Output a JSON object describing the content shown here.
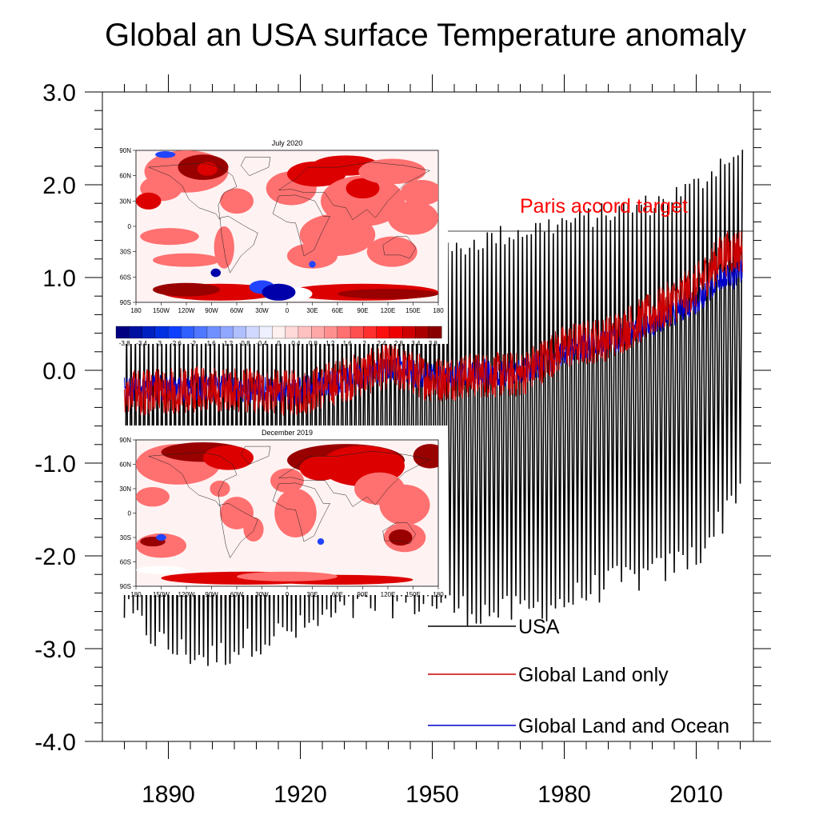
{
  "chart_data": {
    "type": "line",
    "title": "Global an USA surface Temperature anomaly",
    "xlabel": "",
    "ylabel": "",
    "xlim": [
      1875,
      2023
    ],
    "ylim": [
      -4.0,
      3.0
    ],
    "x_ticks": [
      1890,
      1920,
      1950,
      1980,
      2010
    ],
    "x_tick_labels": [
      "1890",
      "1920",
      "1950",
      "1980",
      "2010"
    ],
    "y_ticks": [
      3.0,
      2.0,
      1.0,
      0.0,
      -1.0,
      -2.0,
      -3.0,
      -4.0
    ],
    "y_tick_labels": [
      "3.0",
      "2.0",
      "1.0",
      "0.0",
      "-1.0",
      "-2.0",
      "-3.0",
      "-4.0"
    ],
    "legend_placement": "bottom-right",
    "series": [
      {
        "name": "USA",
        "color": "#000000",
        "period_years": 1,
        "envelope_x": [
          1880,
          1890,
          1900,
          1910,
          1920,
          1930,
          1940,
          1950,
          1960,
          1970,
          1980,
          1990,
          2000,
          2010,
          2016,
          2020
        ],
        "envelope_max": [
          0.4,
          0.5,
          0.5,
          0.5,
          0.6,
          0.7,
          0.8,
          1.2,
          1.4,
          1.5,
          1.6,
          1.7,
          1.8,
          2.0,
          2.3,
          2.3
        ],
        "envelope_min": [
          -2.6,
          -3.0,
          -3.1,
          -2.9,
          -2.8,
          -2.6,
          -2.5,
          -2.5,
          -2.6,
          -2.6,
          -2.5,
          -2.3,
          -2.2,
          -2.0,
          -1.6,
          -1.2
        ]
      },
      {
        "name": "Global Land only",
        "color": "#cc0000",
        "trend_x": [
          1880,
          1900,
          1920,
          1940,
          1950,
          1960,
          1970,
          1980,
          1990,
          2000,
          2010,
          2016,
          2020
        ],
        "trend_y": [
          -0.25,
          -0.2,
          -0.25,
          0.05,
          -0.1,
          -0.05,
          -0.05,
          0.25,
          0.35,
          0.6,
          0.9,
          1.25,
          1.3
        ],
        "noise": 0.25
      },
      {
        "name": "Global Land and Ocean",
        "color": "#0000cc",
        "trend_x": [
          1880,
          1900,
          1920,
          1940,
          1950,
          1960,
          1970,
          1980,
          1990,
          2000,
          2010,
          2016,
          2020
        ],
        "trend_y": [
          -0.2,
          -0.18,
          -0.22,
          0.03,
          -0.08,
          -0.03,
          -0.02,
          0.2,
          0.3,
          0.5,
          0.75,
          1.0,
          1.05
        ],
        "noise": 0.15
      }
    ],
    "reference_lines": [
      {
        "label": "Paris accord target",
        "y": 1.5,
        "color": "#000000",
        "label_color": "#ff0000"
      }
    ]
  },
  "inset_maps": [
    {
      "title": "July 2020",
      "lat_labels": [
        "90N",
        "60N",
        "30N",
        "0",
        "30S",
        "60S",
        "90S"
      ],
      "lon_labels": [
        "180",
        "150W",
        "120W",
        "90W",
        "60W",
        "30W",
        "0",
        "30E",
        "60E",
        "90E",
        "120E",
        "150E",
        "180"
      ]
    },
    {
      "title": "December 2019",
      "lat_labels": [
        "90N",
        "60N",
        "30N",
        "0",
        "30S",
        "60S",
        "90S"
      ],
      "lon_labels": [
        "180",
        "150W",
        "120W",
        "90W",
        "60W",
        "30W",
        "0",
        "30E",
        "60E",
        "90E",
        "120E",
        "150E",
        "180"
      ]
    }
  ],
  "colorbar": {
    "tick_labels": [
      "-3.8",
      "-3.4",
      "-3",
      "-2.6",
      "-2",
      "-1.6",
      "-1.2",
      "-0.8",
      "-0.4",
      "0",
      "0.4",
      "0.8",
      "1.2",
      "1.6",
      "2",
      "2.4",
      "2.8",
      "3.4",
      "3.8"
    ]
  }
}
